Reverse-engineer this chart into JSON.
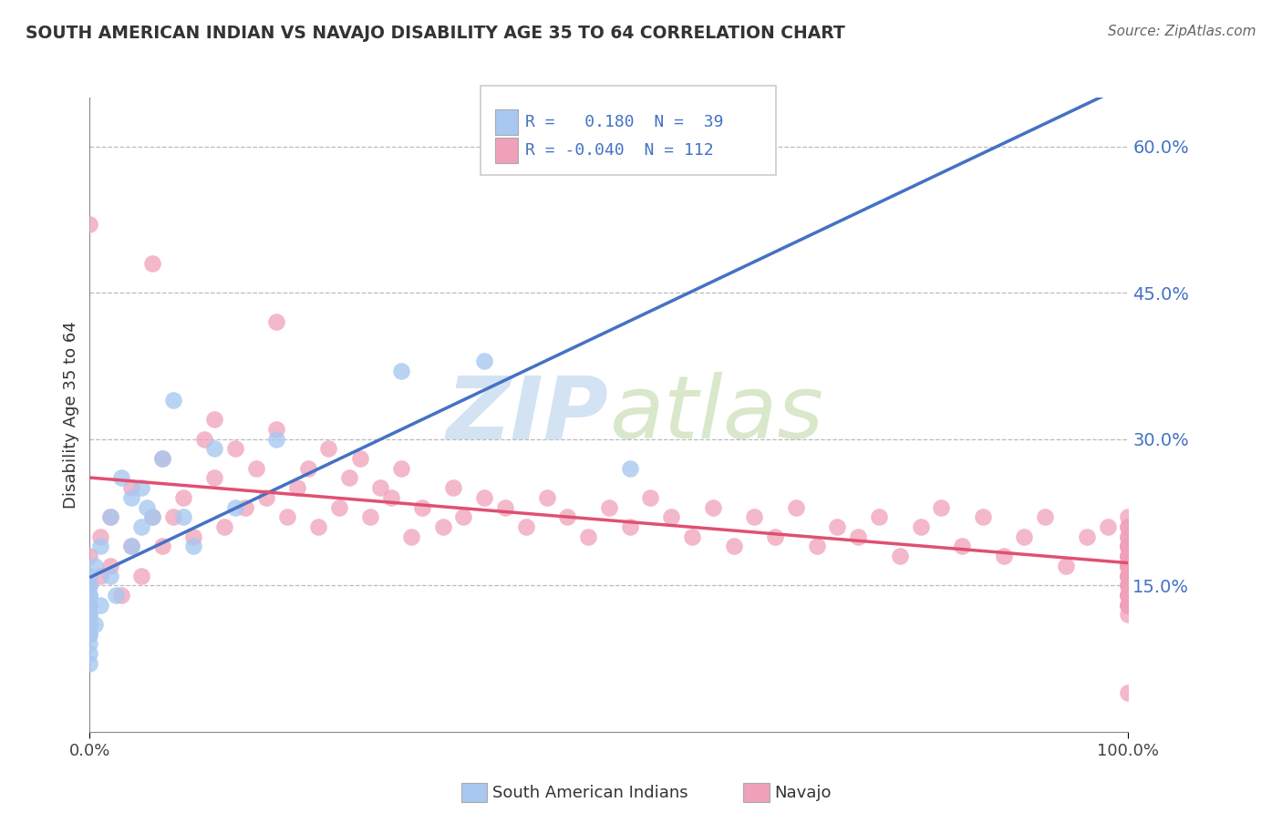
{
  "title": "SOUTH AMERICAN INDIAN VS NAVAJO DISABILITY AGE 35 TO 64 CORRELATION CHART",
  "source": "Source: ZipAtlas.com",
  "ylabel": "Disability Age 35 to 64",
  "ytick_vals": [
    0.15,
    0.3,
    0.45,
    0.6
  ],
  "ytick_labels": [
    "15.0%",
    "30.0%",
    "45.0%",
    "60.0%"
  ],
  "xlim": [
    0.0,
    1.0
  ],
  "ylim": [
    0.0,
    0.65
  ],
  "color_blue": "#A8C8F0",
  "color_pink": "#F0A0B8",
  "color_blue_line": "#4472C4",
  "color_pink_line": "#E05070",
  "watermark_color": "#C8DCF0",
  "blue_x": [
    0.0,
    0.0,
    0.0,
    0.0,
    0.0,
    0.0,
    0.0,
    0.0,
    0.0,
    0.0,
    0.0,
    0.0,
    0.0,
    0.0,
    0.0,
    0.005,
    0.005,
    0.01,
    0.01,
    0.02,
    0.02,
    0.025,
    0.03,
    0.04,
    0.04,
    0.05,
    0.05,
    0.055,
    0.06,
    0.07,
    0.08,
    0.09,
    0.1,
    0.12,
    0.14,
    0.18,
    0.3,
    0.38,
    0.52
  ],
  "blue_y": [
    0.07,
    0.08,
    0.09,
    0.1,
    0.1,
    0.11,
    0.12,
    0.12,
    0.13,
    0.13,
    0.14,
    0.14,
    0.15,
    0.15,
    0.16,
    0.11,
    0.17,
    0.13,
    0.19,
    0.16,
    0.22,
    0.14,
    0.26,
    0.19,
    0.24,
    0.21,
    0.25,
    0.23,
    0.22,
    0.28,
    0.34,
    0.22,
    0.19,
    0.29,
    0.23,
    0.3,
    0.37,
    0.38,
    0.27
  ],
  "pink_x": [
    0.0,
    0.0,
    0.0,
    0.01,
    0.01,
    0.02,
    0.02,
    0.03,
    0.04,
    0.04,
    0.05,
    0.06,
    0.06,
    0.07,
    0.07,
    0.08,
    0.09,
    0.1,
    0.11,
    0.12,
    0.12,
    0.13,
    0.14,
    0.15,
    0.16,
    0.17,
    0.18,
    0.18,
    0.19,
    0.2,
    0.21,
    0.22,
    0.23,
    0.24,
    0.25,
    0.26,
    0.27,
    0.28,
    0.29,
    0.3,
    0.31,
    0.32,
    0.34,
    0.35,
    0.36,
    0.38,
    0.4,
    0.42,
    0.44,
    0.46,
    0.48,
    0.5,
    0.52,
    0.54,
    0.56,
    0.58,
    0.6,
    0.62,
    0.64,
    0.66,
    0.68,
    0.7,
    0.72,
    0.74,
    0.76,
    0.78,
    0.8,
    0.82,
    0.84,
    0.86,
    0.88,
    0.9,
    0.92,
    0.94,
    0.96,
    0.98,
    1.0,
    1.0,
    1.0,
    1.0,
    1.0,
    1.0,
    1.0,
    1.0,
    1.0,
    1.0,
    1.0,
    1.0,
    1.0,
    1.0,
    1.0,
    1.0,
    1.0,
    1.0,
    1.0,
    1.0,
    1.0,
    1.0,
    1.0,
    1.0,
    1.0,
    1.0,
    1.0,
    1.0,
    1.0,
    1.0,
    1.0,
    1.0,
    1.0,
    1.0,
    1.0,
    1.0
  ],
  "pink_y": [
    0.15,
    0.18,
    0.52,
    0.16,
    0.2,
    0.17,
    0.22,
    0.14,
    0.19,
    0.25,
    0.16,
    0.22,
    0.48,
    0.19,
    0.28,
    0.22,
    0.24,
    0.2,
    0.3,
    0.26,
    0.32,
    0.21,
    0.29,
    0.23,
    0.27,
    0.24,
    0.31,
    0.42,
    0.22,
    0.25,
    0.27,
    0.21,
    0.29,
    0.23,
    0.26,
    0.28,
    0.22,
    0.25,
    0.24,
    0.27,
    0.2,
    0.23,
    0.21,
    0.25,
    0.22,
    0.24,
    0.23,
    0.21,
    0.24,
    0.22,
    0.2,
    0.23,
    0.21,
    0.24,
    0.22,
    0.2,
    0.23,
    0.19,
    0.22,
    0.2,
    0.23,
    0.19,
    0.21,
    0.2,
    0.22,
    0.18,
    0.21,
    0.23,
    0.19,
    0.22,
    0.18,
    0.2,
    0.22,
    0.17,
    0.2,
    0.21,
    0.18,
    0.21,
    0.16,
    0.19,
    0.22,
    0.17,
    0.2,
    0.15,
    0.18,
    0.21,
    0.16,
    0.19,
    0.14,
    0.17,
    0.2,
    0.15,
    0.18,
    0.13,
    0.16,
    0.19,
    0.14,
    0.17,
    0.13,
    0.16,
    0.19,
    0.14,
    0.04,
    0.17,
    0.13,
    0.16,
    0.19,
    0.14,
    0.17,
    0.12,
    0.15,
    0.18
  ]
}
